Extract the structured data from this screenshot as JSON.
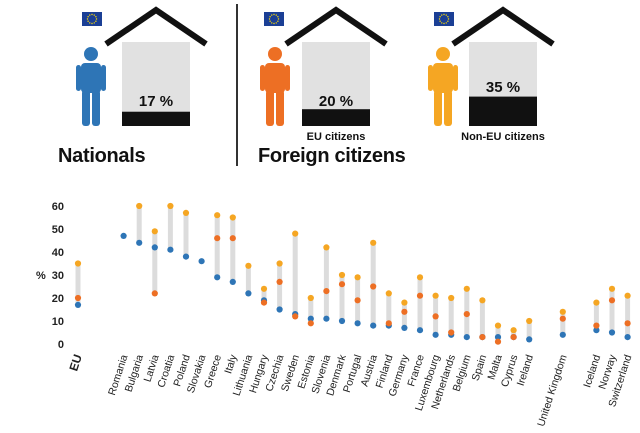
{
  "infographic": {
    "panels": [
      {
        "label": "Nationals",
        "value": "17 %",
        "share": 0.17,
        "sublabel": "",
        "person_color": "#2e75b6"
      },
      {
        "label": "Foreign citizens",
        "value": "20 %",
        "share": 0.2,
        "sublabel": "EU citizens",
        "person_color": "#ed6f24"
      },
      {
        "label": "",
        "value": "35 %",
        "share": 0.35,
        "sublabel": "Non-EU citizens",
        "person_color": "#f5a623"
      }
    ],
    "flag_color": "#1b3f95",
    "house_fill": "#e1e1e1",
    "roof_color": "#111111"
  },
  "chart_data": {
    "type": "scatter",
    "title": "",
    "xlabel": "",
    "ylabel": "%",
    "ylim": [
      0,
      60
    ],
    "yticks": [
      0,
      10,
      20,
      30,
      40,
      50,
      60
    ],
    "grid": false,
    "categories": [
      "EU",
      "Romania",
      "Bulgaria",
      "Latvia",
      "Croatia",
      "Poland",
      "Slovakia",
      "Greece",
      "Italy",
      "Lithuania",
      "Hungary",
      "Czechia",
      "Sweden",
      "Estonia",
      "Slovenia",
      "Denmark",
      "Portugal",
      "Austria",
      "Finland",
      "Germany",
      "France",
      "Luxembourg",
      "Netherlands",
      "Belgium",
      "Spain",
      "Malta",
      "Cyprus",
      "Ireland",
      "United Kingdom",
      "Iceland",
      "Norway",
      "Switzerland"
    ],
    "series": [
      {
        "name": "Nationals",
        "color": "#2e75b6",
        "values": [
          17,
          47,
          44,
          42,
          41,
          38,
          36,
          29,
          27,
          22,
          19,
          15,
          13,
          11,
          11,
          10,
          9,
          8,
          8,
          7,
          6,
          4,
          4,
          3,
          3,
          3,
          3,
          2,
          4,
          6,
          5,
          3
        ]
      },
      {
        "name": "EU citizens",
        "color": "#ed6f24",
        "values": [
          20,
          null,
          null,
          22,
          null,
          null,
          null,
          46,
          46,
          null,
          18,
          27,
          12,
          9,
          23,
          26,
          19,
          25,
          9,
          14,
          21,
          12,
          5,
          13,
          3,
          1,
          3,
          null,
          11,
          8,
          19,
          9
        ]
      },
      {
        "name": "Non-EU citizens",
        "color": "#f5a623",
        "values": [
          35,
          null,
          60,
          49,
          60,
          57,
          null,
          56,
          55,
          34,
          24,
          35,
          48,
          20,
          42,
          30,
          29,
          44,
          22,
          18,
          29,
          21,
          20,
          24,
          19,
          8,
          6,
          10,
          14,
          18,
          24,
          21
        ]
      }
    ]
  }
}
